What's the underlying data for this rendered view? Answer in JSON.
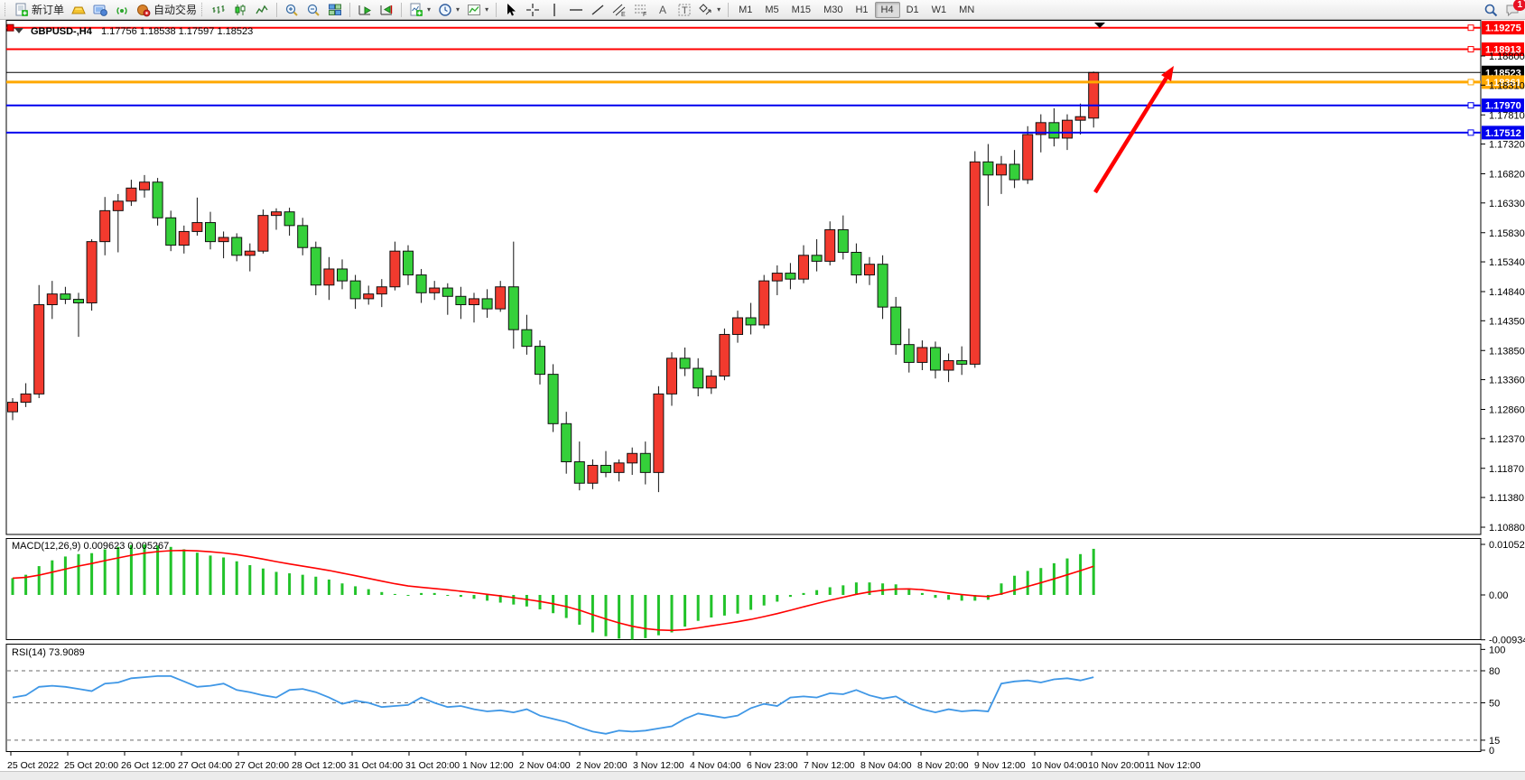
{
  "toolbar": {
    "new_order_label": "新订单",
    "autotrading_label": "自动交易",
    "timeframes": [
      "M1",
      "M5",
      "M15",
      "M30",
      "H1",
      "H4",
      "D1",
      "W1",
      "MN"
    ],
    "active_timeframe": "H4",
    "notification_count": "1"
  },
  "chart": {
    "title": "GBPUSD-,H4",
    "ohlc": "1.17756 1.18538 1.17597 1.18523",
    "macd_label": "MACD(12,26,9) 0.009623 0.005267",
    "rsi_label": "RSI(14) 73.9089"
  },
  "chart_data": {
    "type": "candlestick",
    "symbol": "GBPUSD-",
    "timeframe": "H4",
    "current_ohlc": {
      "open": 1.17756,
      "high": 1.18538,
      "low": 1.17597,
      "close": 1.18523
    },
    "price_ticks": [
      "1.18800",
      "1.18310",
      "1.17810",
      "1.17320",
      "1.16820",
      "1.16330",
      "1.15830",
      "1.15340",
      "1.14840",
      "1.14350",
      "1.13850",
      "1.13360",
      "1.12860",
      "1.12370",
      "1.11870",
      "1.11380",
      "1.10880"
    ],
    "hlines": [
      {
        "price": 1.19275,
        "label": "1.19275",
        "color": "#ff0000",
        "width": 2,
        "role": "resistance"
      },
      {
        "price": 1.18913,
        "label": "1.18913",
        "color": "#ff0000",
        "width": 2,
        "role": "resistance"
      },
      {
        "price": 1.18523,
        "label": "1.18523",
        "color": "#000000",
        "width": 1,
        "role": "current-price"
      },
      {
        "price": 1.18361,
        "label": "1.18361",
        "color": "#ffa800",
        "width": 3,
        "role": "level"
      },
      {
        "price": 1.1797,
        "label": "1.17970",
        "color": "#0000ee",
        "width": 2,
        "role": "support"
      },
      {
        "price": 1.17512,
        "label": "1.17512",
        "color": "#0000ee",
        "width": 2,
        "role": "support"
      }
    ],
    "time_labels": [
      "25 Oct 2022",
      "25 Oct 20:00",
      "26 Oct 12:00",
      "27 Oct 04:00",
      "27 Oct 20:00",
      "28 Oct 12:00",
      "31 Oct 04:00",
      "31 Oct 20:00",
      "1 Nov 12:00",
      "2 Nov 04:00",
      "2 Nov 20:00",
      "3 Nov 12:00",
      "4 Nov 04:00",
      "6 Nov 23:00",
      "7 Nov 12:00",
      "8 Nov 04:00",
      "8 Nov 20:00",
      "9 Nov 12:00",
      "10 Nov 04:00",
      "10 Nov 20:00",
      "11 Nov 12:00"
    ],
    "candles": [
      [
        1.1282,
        1.1305,
        1.1268,
        1.1298
      ],
      [
        1.1298,
        1.133,
        1.129,
        1.1312
      ],
      [
        1.1312,
        1.1495,
        1.1305,
        1.1462
      ],
      [
        1.1462,
        1.1502,
        1.1438,
        1.148
      ],
      [
        1.148,
        1.1492,
        1.1463,
        1.1471
      ],
      [
        1.1471,
        1.1482,
        1.1408,
        1.1465
      ],
      [
        1.1465,
        1.1572,
        1.1452,
        1.1568
      ],
      [
        1.1568,
        1.1643,
        1.1545,
        1.162
      ],
      [
        1.162,
        1.1648,
        1.155,
        1.1636
      ],
      [
        1.1636,
        1.1672,
        1.1628,
        1.1658
      ],
      [
        1.1655,
        1.168,
        1.1642,
        1.1668
      ],
      [
        1.1668,
        1.1675,
        1.1595,
        1.1608
      ],
      [
        1.1608,
        1.162,
        1.1552,
        1.1562
      ],
      [
        1.1562,
        1.1595,
        1.1548,
        1.1585
      ],
      [
        1.1585,
        1.1642,
        1.1578,
        1.16
      ],
      [
        1.16,
        1.1618,
        1.1555,
        1.1568
      ],
      [
        1.1568,
        1.1585,
        1.154,
        1.1575
      ],
      [
        1.1575,
        1.1582,
        1.1535,
        1.1545
      ],
      [
        1.1545,
        1.1565,
        1.1518,
        1.1552
      ],
      [
        1.1552,
        1.1622,
        1.1548,
        1.1612
      ],
      [
        1.1612,
        1.1624,
        1.1588,
        1.1618
      ],
      [
        1.1618,
        1.1625,
        1.1578,
        1.1595
      ],
      [
        1.1595,
        1.1608,
        1.1545,
        1.1558
      ],
      [
        1.1558,
        1.1568,
        1.1478,
        1.1495
      ],
      [
        1.1495,
        1.1542,
        1.147,
        1.1522
      ],
      [
        1.1522,
        1.1538,
        1.1488,
        1.1502
      ],
      [
        1.1502,
        1.1512,
        1.1455,
        1.1472
      ],
      [
        1.1472,
        1.1494,
        1.1462,
        1.148
      ],
      [
        1.148,
        1.1505,
        1.1458,
        1.1492
      ],
      [
        1.1492,
        1.1568,
        1.1486,
        1.1552
      ],
      [
        1.1552,
        1.1562,
        1.1495,
        1.1512
      ],
      [
        1.1512,
        1.1522,
        1.1465,
        1.1482
      ],
      [
        1.1482,
        1.1502,
        1.147,
        1.149
      ],
      [
        1.149,
        1.1498,
        1.1445,
        1.1476
      ],
      [
        1.1476,
        1.1492,
        1.1438,
        1.1462
      ],
      [
        1.1462,
        1.1482,
        1.1432,
        1.1472
      ],
      [
        1.1472,
        1.1488,
        1.144,
        1.1455
      ],
      [
        1.1455,
        1.1502,
        1.145,
        1.1492
      ],
      [
        1.1492,
        1.1568,
        1.1388,
        1.142
      ],
      [
        1.142,
        1.1445,
        1.1378,
        1.1392
      ],
      [
        1.1392,
        1.1402,
        1.1328,
        1.1345
      ],
      [
        1.1345,
        1.1362,
        1.1248,
        1.1262
      ],
      [
        1.1262,
        1.1282,
        1.1178,
        1.1198
      ],
      [
        1.1198,
        1.1232,
        1.115,
        1.1162
      ],
      [
        1.1162,
        1.1202,
        1.1152,
        1.1192
      ],
      [
        1.1192,
        1.1216,
        1.1172,
        1.118
      ],
      [
        1.118,
        1.1202,
        1.1165,
        1.1196
      ],
      [
        1.1196,
        1.1222,
        1.1176,
        1.1212
      ],
      [
        1.1212,
        1.1232,
        1.116,
        1.118
      ],
      [
        1.118,
        1.1325,
        1.1147,
        1.1312
      ],
      [
        1.1312,
        1.1382,
        1.1292,
        1.1372
      ],
      [
        1.1372,
        1.139,
        1.1342,
        1.1355
      ],
      [
        1.1355,
        1.1372,
        1.1308,
        1.1322
      ],
      [
        1.1322,
        1.1352,
        1.1312,
        1.1342
      ],
      [
        1.1342,
        1.1422,
        1.1335,
        1.1412
      ],
      [
        1.1412,
        1.1452,
        1.1398,
        1.144
      ],
      [
        1.144,
        1.1465,
        1.1412,
        1.1428
      ],
      [
        1.1428,
        1.1512,
        1.1422,
        1.1502
      ],
      [
        1.1502,
        1.1528,
        1.1478,
        1.1515
      ],
      [
        1.1515,
        1.1532,
        1.1488,
        1.1505
      ],
      [
        1.1505,
        1.1562,
        1.1498,
        1.1545
      ],
      [
        1.1545,
        1.1572,
        1.1518,
        1.1535
      ],
      [
        1.1535,
        1.1602,
        1.1528,
        1.1588
      ],
      [
        1.1588,
        1.1612,
        1.1538,
        1.155
      ],
      [
        1.155,
        1.1565,
        1.1498,
        1.1512
      ],
      [
        1.1512,
        1.1542,
        1.1495,
        1.153
      ],
      [
        1.153,
        1.1545,
        1.1438,
        1.1458
      ],
      [
        1.1458,
        1.1475,
        1.1378,
        1.1395
      ],
      [
        1.1395,
        1.1422,
        1.1348,
        1.1365
      ],
      [
        1.1365,
        1.1402,
        1.1352,
        1.139
      ],
      [
        1.139,
        1.14,
        1.1338,
        1.1352
      ],
      [
        1.1352,
        1.138,
        1.1332,
        1.1368
      ],
      [
        1.1368,
        1.1392,
        1.1344,
        1.1362
      ],
      [
        1.1362,
        1.172,
        1.1356,
        1.1702
      ],
      [
        1.1702,
        1.1732,
        1.1628,
        1.168
      ],
      [
        1.168,
        1.1712,
        1.1648,
        1.1698
      ],
      [
        1.1698,
        1.1722,
        1.1658,
        1.1672
      ],
      [
        1.1672,
        1.1762,
        1.1665,
        1.1748
      ],
      [
        1.1748,
        1.1782,
        1.1718,
        1.1768
      ],
      [
        1.1768,
        1.1792,
        1.1728,
        1.1742
      ],
      [
        1.1742,
        1.1782,
        1.1722,
        1.1772
      ],
      [
        1.1772,
        1.18,
        1.1748,
        1.1778
      ],
      [
        1.17756,
        1.18538,
        1.17597,
        1.18523
      ]
    ],
    "macd": {
      "label": "MACD(12,26,9)",
      "value": 0.009623,
      "signal_value": 0.005267,
      "axis": [
        "0.010526",
        "0.00",
        "-0.009342"
      ],
      "histogram": [
        0.0035,
        0.0042,
        0.006,
        0.0072,
        0.008,
        0.0085,
        0.0087,
        0.0095,
        0.01,
        0.0104,
        0.0105,
        0.0103,
        0.01,
        0.0095,
        0.0088,
        0.0082,
        0.0078,
        0.007,
        0.0062,
        0.0055,
        0.0048,
        0.0045,
        0.0042,
        0.0038,
        0.0032,
        0.0024,
        0.0018,
        0.0012,
        0.0006,
        0.0002,
        0.0,
        0.0004,
        0.0004,
        0.0,
        -0.0004,
        -0.0008,
        -0.0012,
        -0.0016,
        -0.002,
        -0.0024,
        -0.003,
        -0.0038,
        -0.0048,
        -0.0062,
        -0.0078,
        -0.0086,
        -0.0091,
        -0.0093,
        -0.009,
        -0.0084,
        -0.0078,
        -0.0066,
        -0.0054,
        -0.0047,
        -0.0043,
        -0.0039,
        -0.0031,
        -0.0022,
        -0.0014,
        -0.0004,
        0.0004,
        0.001,
        0.0016,
        0.002,
        0.0026,
        0.0026,
        0.0024,
        0.0022,
        0.0014,
        0.0004,
        -0.0006,
        -0.001,
        -0.0012,
        -0.0012,
        -0.001,
        0.0024,
        0.004,
        0.005,
        0.0056,
        0.0066,
        0.0076,
        0.0085,
        0.0096
      ]
    },
    "rsi": {
      "label": "RSI(14)",
      "value": 73.9089,
      "axis": [
        "100",
        "80",
        "50",
        "15",
        "0"
      ],
      "levels": [
        80,
        50,
        15
      ],
      "values": [
        55,
        57,
        65,
        66,
        65,
        63,
        61,
        68,
        69,
        73,
        74,
        75,
        75,
        70,
        65,
        66,
        68,
        62,
        60,
        57,
        55,
        62,
        63,
        60,
        55,
        49,
        52,
        50,
        46,
        47,
        48,
        55,
        50,
        46,
        47,
        44,
        42,
        43,
        41,
        44,
        38,
        35,
        32,
        27,
        23,
        21,
        24,
        23,
        24,
        26,
        28,
        35,
        40,
        38,
        36,
        38,
        45,
        49,
        47,
        55,
        56,
        55,
        59,
        58,
        62,
        57,
        54,
        56,
        49,
        44,
        41,
        44,
        42,
        43,
        42,
        68,
        70,
        71,
        69,
        72,
        73,
        71,
        74
      ]
    },
    "annotation_arrow": {
      "from": [
        1213,
        213
      ],
      "to": [
        1300,
        73
      ],
      "color": "#ff0000"
    },
    "colors": {
      "bull": "#f23a2e",
      "bear": "#35d03a",
      "outline": "#111111",
      "macd_hist": "#22c32a",
      "macd_signal": "#ff0000",
      "rsi_line": "#3f97e6",
      "badge_text": "#ffffff"
    }
  }
}
